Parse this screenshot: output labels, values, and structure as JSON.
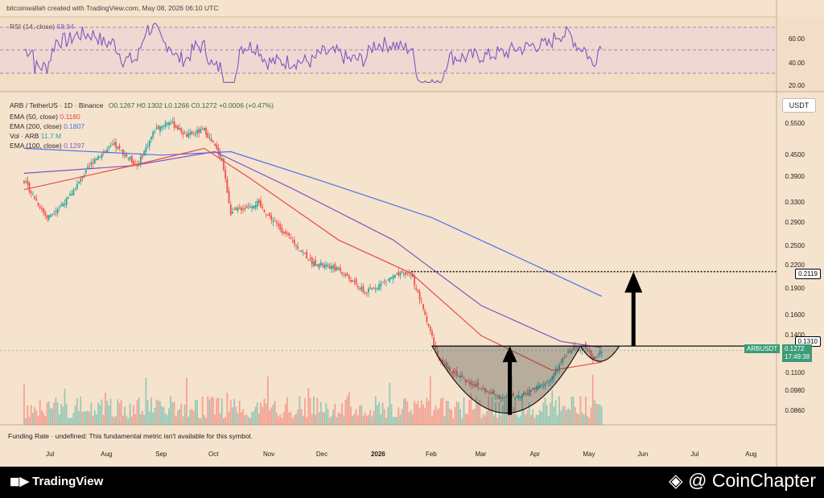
{
  "header": {
    "credit": "bitcoinwallah created with TradingView.com, May 08, 2026 06:10 UTC"
  },
  "rsi": {
    "label": "RSI (14, close)",
    "value": "58.94",
    "levels": [
      "60.00",
      "40.00",
      "20.00"
    ]
  },
  "legend": {
    "symbol_line": "ARB / TetherUS · 1D · Binance",
    "ohlc": "O0.1267 H0.1302 L0.1266 C0.1272 +0.0006 (+0.47%)",
    "ema50_label": "EMA (50, close)",
    "ema50_value": "0.1180",
    "ema200_label": "EMA (200, close)",
    "ema200_value": "0.1807",
    "vol_label": "Vol · ARB",
    "vol_value": "11.7 M",
    "ema100_label": "EMA (100, close)",
    "ema100_value": "0.1297"
  },
  "currency_button": "USDT",
  "price_axis": [
    "0.5500",
    "0.4500",
    "0.3900",
    "0.3300",
    "0.2900",
    "0.2500",
    "0.2200",
    "0.1900",
    "0.1600",
    "0.1400",
    "0.1100",
    "0.0980",
    "0.0860"
  ],
  "price_tags": {
    "target": "0.2119",
    "resistance": "0.1310",
    "symbol": "ARBUSDT",
    "last": "0.1272",
    "countdown": "17:49:38"
  },
  "time_axis": [
    "Jul",
    "Aug",
    "Sep",
    "Oct",
    "Nov",
    "Dec",
    "2026",
    "Feb",
    "Mar",
    "Apr",
    "May",
    "Jun",
    "Jul",
    "Aug"
  ],
  "funding_note": "Funding Rate · undefined: This fundamental metric isn't available for this symbol.",
  "footer": {
    "tradingview": "TradingView",
    "coinchapter": "@ CoinChapter"
  },
  "colors": {
    "bg": "#f6e3cd",
    "up": "#26a69a",
    "down": "#ef5350",
    "ema50": "#e84a4a",
    "ema100": "#7e57c2",
    "ema200": "#4a73e8",
    "rsi": "#7e57c2"
  },
  "chart_data": {
    "type": "candlestick",
    "symbol": "ARB/USDT",
    "timeframe": "1D",
    "price_scale": "log",
    "x_range": [
      "2025-06",
      "2026-08"
    ],
    "close_path": [
      {
        "date": "2025-06-15",
        "close": 0.38
      },
      {
        "date": "2025-06-28",
        "close": 0.3
      },
      {
        "date": "2025-07-10",
        "close": 0.34
      },
      {
        "date": "2025-07-25",
        "close": 0.44
      },
      {
        "date": "2025-08-05",
        "close": 0.48
      },
      {
        "date": "2025-08-18",
        "close": 0.42
      },
      {
        "date": "2025-08-28",
        "close": 0.53
      },
      {
        "date": "2025-09-05",
        "close": 0.56
      },
      {
        "date": "2025-09-15",
        "close": 0.51
      },
      {
        "date": "2025-09-25",
        "close": 0.53
      },
      {
        "date": "2025-10-05",
        "close": 0.44
      },
      {
        "date": "2025-10-10",
        "close": 0.31
      },
      {
        "date": "2025-10-25",
        "close": 0.33
      },
      {
        "date": "2025-11-10",
        "close": 0.27
      },
      {
        "date": "2025-11-25",
        "close": 0.225
      },
      {
        "date": "2025-12-10",
        "close": 0.215
      },
      {
        "date": "2025-12-25",
        "close": 0.185
      },
      {
        "date": "2026-01-10",
        "close": 0.205
      },
      {
        "date": "2026-01-20",
        "close": 0.21
      },
      {
        "date": "2026-01-30",
        "close": 0.15
      },
      {
        "date": "2026-02-05",
        "close": 0.118
      },
      {
        "date": "2026-02-20",
        "close": 0.105
      },
      {
        "date": "2026-03-05",
        "close": 0.097
      },
      {
        "date": "2026-03-15",
        "close": 0.094
      },
      {
        "date": "2026-03-25",
        "close": 0.096
      },
      {
        "date": "2026-04-08",
        "close": 0.104
      },
      {
        "date": "2026-04-20",
        "close": 0.128
      },
      {
        "date": "2026-04-28",
        "close": 0.131
      },
      {
        "date": "2026-05-03",
        "close": 0.121
      },
      {
        "date": "2026-05-08",
        "close": 0.1272
      }
    ],
    "ema50": [
      {
        "date": "2025-06-15",
        "value": 0.36
      },
      {
        "date": "2025-08-15",
        "value": 0.42
      },
      {
        "date": "2025-09-25",
        "value": 0.47
      },
      {
        "date": "2025-10-20",
        "value": 0.39
      },
      {
        "date": "2025-12-10",
        "value": 0.26
      },
      {
        "date": "2026-01-20",
        "value": 0.21
      },
      {
        "date": "2026-03-01",
        "value": 0.14
      },
      {
        "date": "2026-04-10",
        "value": 0.112
      },
      {
        "date": "2026-05-08",
        "value": 0.118
      }
    ],
    "ema100": [
      {
        "date": "2025-06-15",
        "value": 0.4
      },
      {
        "date": "2025-08-15",
        "value": 0.42
      },
      {
        "date": "2025-10-01",
        "value": 0.46
      },
      {
        "date": "2025-11-15",
        "value": 0.36
      },
      {
        "date": "2026-01-10",
        "value": 0.26
      },
      {
        "date": "2026-03-01",
        "value": 0.17
      },
      {
        "date": "2026-04-15",
        "value": 0.135
      },
      {
        "date": "2026-05-08",
        "value": 0.1297
      }
    ],
    "ema200": [
      {
        "date": "2025-06-15",
        "value": 0.47
      },
      {
        "date": "2025-09-01",
        "value": 0.45
      },
      {
        "date": "2025-10-10",
        "value": 0.46
      },
      {
        "date": "2025-12-01",
        "value": 0.38
      },
      {
        "date": "2026-02-01",
        "value": 0.3
      },
      {
        "date": "2026-04-01",
        "value": 0.22
      },
      {
        "date": "2026-05-08",
        "value": 0.1807
      }
    ],
    "annotations": {
      "resistance": 0.131,
      "target": 0.2119,
      "cup_bottom": 0.084,
      "pattern": "cup and handle"
    }
  }
}
